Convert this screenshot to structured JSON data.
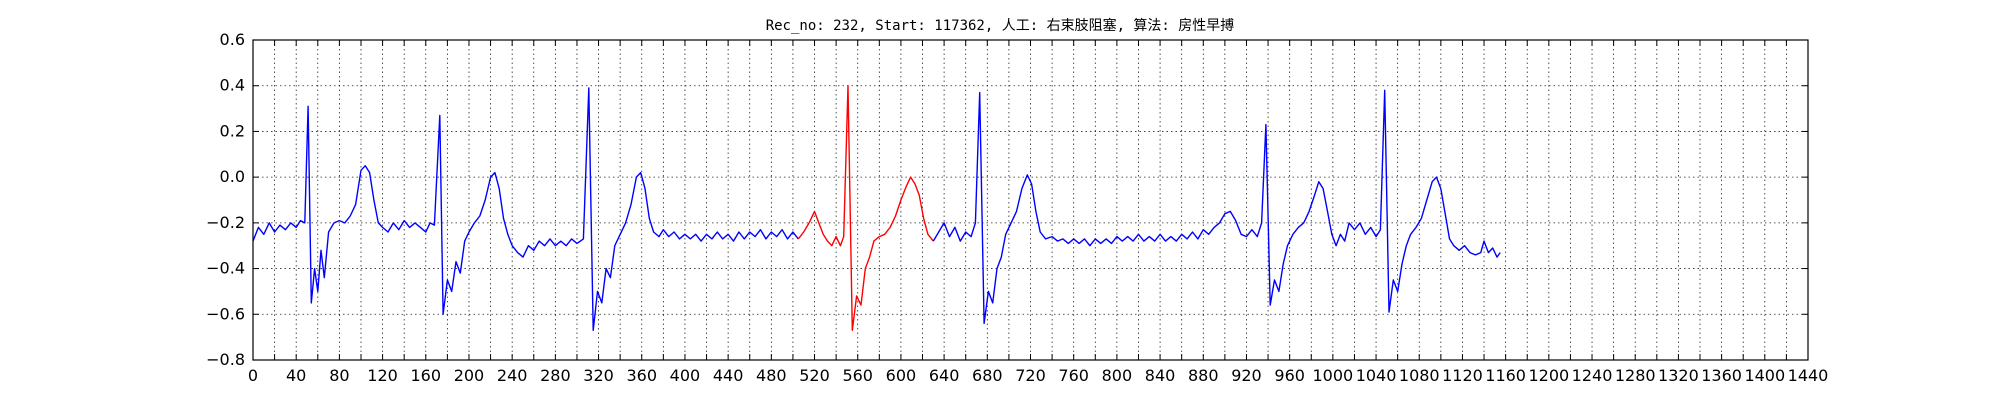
{
  "chart_data": {
    "type": "line",
    "title": "Rec_no: 232, Start: 117362, 人工: 右束肢阻塞, 算法: 房性早搏",
    "xlim": [
      0,
      1440
    ],
    "ylim": [
      -0.8,
      0.6
    ],
    "y_ticks": [
      -0.8,
      -0.6,
      -0.4,
      -0.2,
      0.0,
      0.2,
      0.4,
      0.6
    ],
    "y_tick_labels": [
      "−0.8",
      "−0.6",
      "−0.4",
      "−0.2",
      "0.0",
      "0.2",
      "0.4",
      "0.6"
    ],
    "x_ticks": [
      0,
      20,
      40,
      60,
      80,
      100,
      120,
      140,
      160,
      180,
      200,
      220,
      240,
      260,
      280,
      300,
      320,
      340,
      360,
      380,
      400,
      420,
      440,
      460,
      480,
      500,
      520,
      540,
      560,
      580,
      600,
      620,
      640,
      660,
      680,
      700,
      720,
      740,
      760,
      780,
      800,
      820,
      840,
      860,
      880,
      900,
      920,
      940,
      960,
      980,
      1000,
      1020,
      1040,
      1060,
      1080,
      1100,
      1120,
      1140,
      1160,
      1180,
      1200,
      1220,
      1240,
      1260,
      1280,
      1300,
      1320,
      1340,
      1360,
      1380,
      1400,
      1420,
      1440
    ],
    "x_tick_labels": [
      "0",
      "",
      "40",
      "",
      "80",
      "",
      "120",
      "",
      "160",
      "",
      "200",
      "",
      "240",
      "",
      "280",
      "",
      "320",
      "",
      "360",
      "",
      "400",
      "",
      "440",
      "",
      "480",
      "",
      "520",
      "",
      "560",
      "",
      "600",
      "",
      "640",
      "",
      "680",
      "",
      "720",
      "",
      "760",
      "",
      "800",
      "",
      "840",
      "",
      "880",
      "",
      "920",
      "",
      "960",
      "",
      "1000",
      "",
      "1040",
      "",
      "1080",
      "",
      "1120",
      "",
      "1160",
      "",
      "1200",
      "",
      "1240",
      "",
      "1280",
      "",
      "1320",
      "",
      "1360",
      "",
      "1400",
      "",
      "1440"
    ],
    "grid": true,
    "series": [
      {
        "color": "#0000ff",
        "points": [
          [
            0,
            -0.28
          ],
          [
            5,
            -0.22
          ],
          [
            10,
            -0.25
          ],
          [
            15,
            -0.2
          ],
          [
            20,
            -0.24
          ],
          [
            25,
            -0.21
          ],
          [
            30,
            -0.23
          ],
          [
            35,
            -0.2
          ],
          [
            40,
            -0.22
          ],
          [
            44,
            -0.19
          ],
          [
            48,
            -0.2
          ],
          [
            51,
            0.31
          ],
          [
            54,
            -0.55
          ],
          [
            57,
            -0.4
          ],
          [
            60,
            -0.5
          ],
          [
            63,
            -0.32
          ],
          [
            66,
            -0.44
          ],
          [
            70,
            -0.24
          ],
          [
            75,
            -0.2
          ],
          [
            80,
            -0.19
          ],
          [
            85,
            -0.2
          ],
          [
            90,
            -0.17
          ],
          [
            95,
            -0.12
          ],
          [
            100,
            0.03
          ],
          [
            104,
            0.05
          ],
          [
            108,
            0.02
          ],
          [
            112,
            -0.1
          ],
          [
            116,
            -0.2
          ],
          [
            120,
            -0.22
          ],
          [
            125,
            -0.24
          ],
          [
            130,
            -0.2
          ],
          [
            135,
            -0.23
          ],
          [
            140,
            -0.19
          ],
          [
            145,
            -0.22
          ],
          [
            150,
            -0.2
          ],
          [
            155,
            -0.22
          ],
          [
            160,
            -0.24
          ],
          [
            164,
            -0.2
          ],
          [
            168,
            -0.21
          ],
          [
            173,
            0.27
          ],
          [
            176,
            -0.6
          ],
          [
            180,
            -0.45
          ],
          [
            184,
            -0.5
          ],
          [
            188,
            -0.37
          ],
          [
            192,
            -0.42
          ],
          [
            196,
            -0.28
          ],
          [
            200,
            -0.24
          ],
          [
            205,
            -0.2
          ],
          [
            210,
            -0.17
          ],
          [
            215,
            -0.1
          ],
          [
            220,
            0.0
          ],
          [
            224,
            0.02
          ],
          [
            228,
            -0.05
          ],
          [
            232,
            -0.18
          ],
          [
            236,
            -0.25
          ],
          [
            240,
            -0.3
          ],
          [
            245,
            -0.33
          ],
          [
            250,
            -0.35
          ],
          [
            255,
            -0.3
          ],
          [
            260,
            -0.32
          ],
          [
            265,
            -0.28
          ],
          [
            270,
            -0.3
          ],
          [
            275,
            -0.27
          ],
          [
            280,
            -0.3
          ],
          [
            285,
            -0.28
          ],
          [
            290,
            -0.3
          ],
          [
            295,
            -0.27
          ],
          [
            300,
            -0.29
          ],
          [
            306,
            -0.27
          ],
          [
            311,
            0.39
          ],
          [
            315,
            -0.67
          ],
          [
            319,
            -0.5
          ],
          [
            323,
            -0.55
          ],
          [
            327,
            -0.4
          ],
          [
            331,
            -0.44
          ],
          [
            335,
            -0.3
          ],
          [
            340,
            -0.25
          ],
          [
            345,
            -0.2
          ],
          [
            350,
            -0.12
          ],
          [
            355,
            0.0
          ],
          [
            359,
            0.02
          ],
          [
            363,
            -0.05
          ],
          [
            367,
            -0.18
          ],
          [
            371,
            -0.24
          ],
          [
            376,
            -0.26
          ],
          [
            380,
            -0.23
          ],
          [
            385,
            -0.26
          ],
          [
            390,
            -0.24
          ],
          [
            395,
            -0.27
          ],
          [
            400,
            -0.25
          ],
          [
            405,
            -0.27
          ],
          [
            410,
            -0.25
          ],
          [
            415,
            -0.28
          ],
          [
            420,
            -0.25
          ],
          [
            425,
            -0.27
          ],
          [
            430,
            -0.24
          ],
          [
            435,
            -0.27
          ],
          [
            440,
            -0.25
          ],
          [
            445,
            -0.28
          ],
          [
            450,
            -0.24
          ],
          [
            455,
            -0.27
          ],
          [
            460,
            -0.24
          ],
          [
            465,
            -0.26
          ],
          [
            470,
            -0.23
          ],
          [
            475,
            -0.27
          ],
          [
            480,
            -0.24
          ],
          [
            485,
            -0.26
          ],
          [
            490,
            -0.23
          ],
          [
            495,
            -0.27
          ],
          [
            500,
            -0.24
          ],
          [
            505,
            -0.27
          ]
        ]
      },
      {
        "color": "#ff0000",
        "points": [
          [
            505,
            -0.27
          ],
          [
            510,
            -0.24
          ],
          [
            515,
            -0.2
          ],
          [
            520,
            -0.15
          ],
          [
            524,
            -0.2
          ],
          [
            528,
            -0.25
          ],
          [
            532,
            -0.28
          ],
          [
            536,
            -0.3
          ],
          [
            540,
            -0.26
          ],
          [
            544,
            -0.3
          ],
          [
            547,
            -0.26
          ],
          [
            551,
            0.4
          ],
          [
            555,
            -0.67
          ],
          [
            559,
            -0.52
          ],
          [
            563,
            -0.56
          ],
          [
            567,
            -0.4
          ],
          [
            571,
            -0.35
          ],
          [
            575,
            -0.28
          ],
          [
            580,
            -0.26
          ],
          [
            585,
            -0.25
          ],
          [
            590,
            -0.22
          ],
          [
            595,
            -0.17
          ],
          [
            600,
            -0.1
          ],
          [
            605,
            -0.04
          ],
          [
            609,
            0.0
          ],
          [
            613,
            -0.03
          ],
          [
            617,
            -0.08
          ],
          [
            621,
            -0.18
          ],
          [
            625,
            -0.25
          ],
          [
            630,
            -0.28
          ]
        ]
      },
      {
        "color": "#0000ff",
        "points": [
          [
            630,
            -0.28
          ],
          [
            635,
            -0.24
          ],
          [
            640,
            -0.2
          ],
          [
            645,
            -0.26
          ],
          [
            650,
            -0.22
          ],
          [
            655,
            -0.28
          ],
          [
            660,
            -0.24
          ],
          [
            665,
            -0.26
          ],
          [
            669,
            -0.2
          ],
          [
            673,
            0.37
          ],
          [
            677,
            -0.64
          ],
          [
            681,
            -0.5
          ],
          [
            685,
            -0.55
          ],
          [
            689,
            -0.4
          ],
          [
            693,
            -0.35
          ],
          [
            697,
            -0.25
          ],
          [
            702,
            -0.2
          ],
          [
            707,
            -0.15
          ],
          [
            712,
            -0.05
          ],
          [
            717,
            0.01
          ],
          [
            721,
            -0.03
          ],
          [
            725,
            -0.15
          ],
          [
            729,
            -0.24
          ],
          [
            734,
            -0.27
          ],
          [
            740,
            -0.26
          ],
          [
            745,
            -0.28
          ],
          [
            750,
            -0.27
          ],
          [
            755,
            -0.29
          ],
          [
            760,
            -0.27
          ],
          [
            765,
            -0.29
          ],
          [
            770,
            -0.27
          ],
          [
            775,
            -0.3
          ],
          [
            780,
            -0.27
          ],
          [
            785,
            -0.29
          ],
          [
            790,
            -0.27
          ],
          [
            795,
            -0.29
          ],
          [
            800,
            -0.26
          ],
          [
            805,
            -0.28
          ],
          [
            810,
            -0.26
          ],
          [
            815,
            -0.28
          ],
          [
            820,
            -0.25
          ],
          [
            825,
            -0.28
          ],
          [
            830,
            -0.26
          ],
          [
            835,
            -0.28
          ],
          [
            840,
            -0.25
          ],
          [
            845,
            -0.28
          ],
          [
            850,
            -0.26
          ],
          [
            855,
            -0.28
          ],
          [
            860,
            -0.25
          ],
          [
            865,
            -0.27
          ],
          [
            870,
            -0.24
          ],
          [
            875,
            -0.27
          ],
          [
            880,
            -0.23
          ],
          [
            885,
            -0.25
          ],
          [
            890,
            -0.22
          ],
          [
            895,
            -0.2
          ],
          [
            900,
            -0.16
          ],
          [
            905,
            -0.15
          ],
          [
            910,
            -0.19
          ],
          [
            915,
            -0.25
          ],
          [
            920,
            -0.26
          ],
          [
            925,
            -0.23
          ],
          [
            930,
            -0.26
          ],
          [
            934,
            -0.2
          ],
          [
            938,
            0.23
          ],
          [
            942,
            -0.56
          ],
          [
            946,
            -0.45
          ],
          [
            950,
            -0.5
          ],
          [
            954,
            -0.38
          ],
          [
            958,
            -0.3
          ],
          [
            963,
            -0.25
          ],
          [
            968,
            -0.22
          ],
          [
            973,
            -0.2
          ],
          [
            978,
            -0.15
          ],
          [
            983,
            -0.08
          ],
          [
            987,
            -0.02
          ],
          [
            991,
            -0.05
          ],
          [
            995,
            -0.15
          ],
          [
            999,
            -0.25
          ],
          [
            1003,
            -0.3
          ],
          [
            1007,
            -0.25
          ],
          [
            1011,
            -0.28
          ],
          [
            1015,
            -0.2
          ],
          [
            1020,
            -0.23
          ],
          [
            1025,
            -0.2
          ],
          [
            1030,
            -0.25
          ],
          [
            1035,
            -0.22
          ],
          [
            1040,
            -0.26
          ],
          [
            1044,
            -0.23
          ],
          [
            1048,
            0.38
          ],
          [
            1052,
            -0.59
          ],
          [
            1056,
            -0.45
          ],
          [
            1060,
            -0.5
          ],
          [
            1064,
            -0.38
          ],
          [
            1068,
            -0.3
          ],
          [
            1072,
            -0.25
          ],
          [
            1077,
            -0.22
          ],
          [
            1082,
            -0.18
          ],
          [
            1087,
            -0.1
          ],
          [
            1092,
            -0.02
          ],
          [
            1096,
            0.0
          ],
          [
            1100,
            -0.05
          ],
          [
            1104,
            -0.16
          ],
          [
            1108,
            -0.27
          ],
          [
            1112,
            -0.3
          ],
          [
            1117,
            -0.32
          ],
          [
            1122,
            -0.3
          ],
          [
            1127,
            -0.33
          ],
          [
            1132,
            -0.34
          ],
          [
            1137,
            -0.33
          ],
          [
            1140,
            -0.28
          ],
          [
            1144,
            -0.33
          ],
          [
            1148,
            -0.31
          ],
          [
            1152,
            -0.35
          ],
          [
            1155,
            -0.33
          ]
        ]
      }
    ]
  }
}
